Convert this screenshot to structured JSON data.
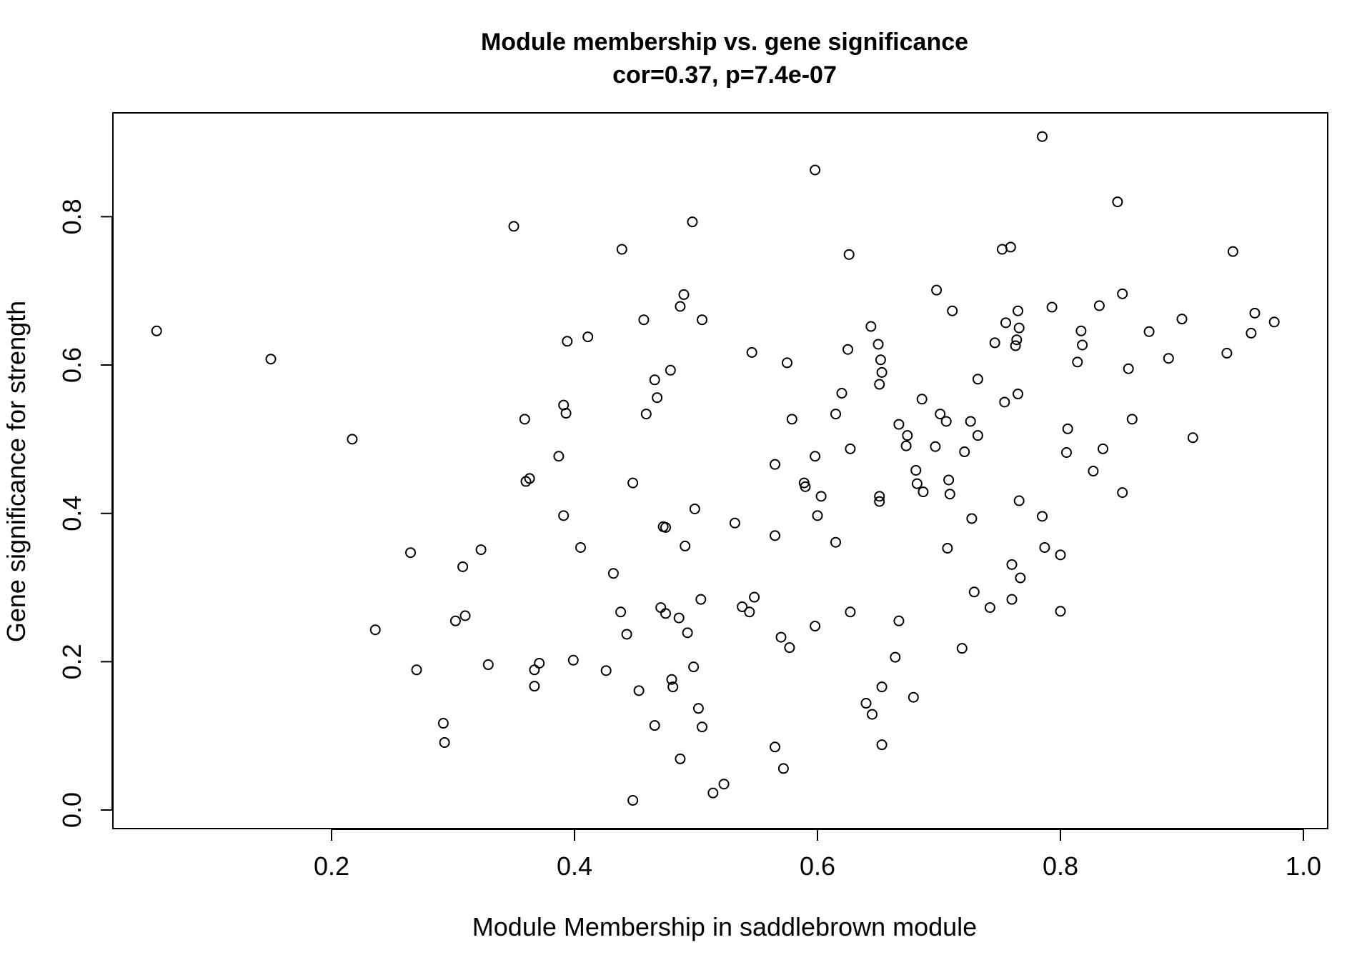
{
  "chart_data": {
    "type": "scatter",
    "title": "Module membership vs. gene significance",
    "subtitle": "cor=0.37, p=7.4e-07",
    "xlabel": "Module Membership in saddlebrown module",
    "ylabel": "Gene significance for strength",
    "xlim": [
      0.02,
      1.02
    ],
    "ylim": [
      -0.025,
      0.94
    ],
    "x_ticks": [
      0.2,
      0.4,
      0.6,
      0.8,
      1.0
    ],
    "x_tick_labels": [
      "0.2",
      "0.4",
      "0.6",
      "0.8",
      "1.0"
    ],
    "y_ticks": [
      0.0,
      0.2,
      0.4,
      0.6,
      0.8
    ],
    "y_tick_labels": [
      "0.0",
      "0.2",
      "0.4",
      "0.6",
      "0.8"
    ],
    "grid": false,
    "marker": "open circle",
    "points": [
      [
        0.056,
        0.646
      ],
      [
        0.15,
        0.608
      ],
      [
        0.217,
        0.5
      ],
      [
        0.236,
        0.243
      ],
      [
        0.265,
        0.347
      ],
      [
        0.27,
        0.189
      ],
      [
        0.292,
        0.117
      ],
      [
        0.293,
        0.091
      ],
      [
        0.302,
        0.255
      ],
      [
        0.308,
        0.328
      ],
      [
        0.31,
        0.262
      ],
      [
        0.323,
        0.351
      ],
      [
        0.329,
        0.196
      ],
      [
        0.35,
        0.787
      ],
      [
        0.359,
        0.527
      ],
      [
        0.36,
        0.443
      ],
      [
        0.363,
        0.447
      ],
      [
        0.367,
        0.189
      ],
      [
        0.367,
        0.167
      ],
      [
        0.371,
        0.198
      ],
      [
        0.387,
        0.477
      ],
      [
        0.391,
        0.546
      ],
      [
        0.391,
        0.397
      ],
      [
        0.393,
        0.535
      ],
      [
        0.394,
        0.632
      ],
      [
        0.399,
        0.202
      ],
      [
        0.405,
        0.354
      ],
      [
        0.411,
        0.638
      ],
      [
        0.426,
        0.188
      ],
      [
        0.432,
        0.319
      ],
      [
        0.438,
        0.267
      ],
      [
        0.439,
        0.756
      ],
      [
        0.443,
        0.237
      ],
      [
        0.448,
        0.441
      ],
      [
        0.448,
        0.013
      ],
      [
        0.453,
        0.161
      ],
      [
        0.457,
        0.661
      ],
      [
        0.459,
        0.534
      ],
      [
        0.466,
        0.58
      ],
      [
        0.466,
        0.114
      ],
      [
        0.468,
        0.556
      ],
      [
        0.471,
        0.273
      ],
      [
        0.473,
        0.382
      ],
      [
        0.475,
        0.381
      ],
      [
        0.475,
        0.265
      ],
      [
        0.479,
        0.593
      ],
      [
        0.48,
        0.176
      ],
      [
        0.481,
        0.166
      ],
      [
        0.486,
        0.259
      ],
      [
        0.487,
        0.679
      ],
      [
        0.487,
        0.069
      ],
      [
        0.49,
        0.695
      ],
      [
        0.491,
        0.356
      ],
      [
        0.493,
        0.239
      ],
      [
        0.497,
        0.793
      ],
      [
        0.498,
        0.193
      ],
      [
        0.499,
        0.406
      ],
      [
        0.502,
        0.137
      ],
      [
        0.504,
        0.284
      ],
      [
        0.505,
        0.661
      ],
      [
        0.505,
        0.112
      ],
      [
        0.514,
        0.023
      ],
      [
        0.523,
        0.035
      ],
      [
        0.532,
        0.387
      ],
      [
        0.538,
        0.274
      ],
      [
        0.544,
        0.267
      ],
      [
        0.546,
        0.617
      ],
      [
        0.548,
        0.287
      ],
      [
        0.565,
        0.466
      ],
      [
        0.565,
        0.37
      ],
      [
        0.565,
        0.085
      ],
      [
        0.57,
        0.233
      ],
      [
        0.572,
        0.056
      ],
      [
        0.575,
        0.603
      ],
      [
        0.577,
        0.219
      ],
      [
        0.579,
        0.527
      ],
      [
        0.589,
        0.441
      ],
      [
        0.59,
        0.436
      ],
      [
        0.598,
        0.863
      ],
      [
        0.598,
        0.477
      ],
      [
        0.598,
        0.248
      ],
      [
        0.6,
        0.397
      ],
      [
        0.603,
        0.423
      ],
      [
        0.615,
        0.534
      ],
      [
        0.615,
        0.361
      ],
      [
        0.62,
        0.562
      ],
      [
        0.625,
        0.621
      ],
      [
        0.626,
        0.749
      ],
      [
        0.627,
        0.487
      ],
      [
        0.627,
        0.267
      ],
      [
        0.64,
        0.144
      ],
      [
        0.644,
        0.652
      ],
      [
        0.645,
        0.129
      ],
      [
        0.65,
        0.628
      ],
      [
        0.651,
        0.574
      ],
      [
        0.651,
        0.423
      ],
      [
        0.651,
        0.416
      ],
      [
        0.652,
        0.607
      ],
      [
        0.653,
        0.59
      ],
      [
        0.653,
        0.166
      ],
      [
        0.653,
        0.088
      ],
      [
        0.664,
        0.206
      ],
      [
        0.667,
        0.52
      ],
      [
        0.667,
        0.255
      ],
      [
        0.673,
        0.491
      ],
      [
        0.674,
        0.505
      ],
      [
        0.679,
        0.152
      ],
      [
        0.681,
        0.458
      ],
      [
        0.682,
        0.44
      ],
      [
        0.686,
        0.554
      ],
      [
        0.687,
        0.429
      ],
      [
        0.697,
        0.49
      ],
      [
        0.698,
        0.701
      ],
      [
        0.701,
        0.534
      ],
      [
        0.706,
        0.524
      ],
      [
        0.707,
        0.353
      ],
      [
        0.708,
        0.445
      ],
      [
        0.709,
        0.426
      ],
      [
        0.711,
        0.673
      ],
      [
        0.719,
        0.218
      ],
      [
        0.721,
        0.483
      ],
      [
        0.726,
        0.524
      ],
      [
        0.727,
        0.393
      ],
      [
        0.729,
        0.294
      ],
      [
        0.732,
        0.581
      ],
      [
        0.732,
        0.505
      ],
      [
        0.742,
        0.273
      ],
      [
        0.746,
        0.63
      ],
      [
        0.752,
        0.756
      ],
      [
        0.754,
        0.55
      ],
      [
        0.755,
        0.657
      ],
      [
        0.759,
        0.759
      ],
      [
        0.76,
        0.331
      ],
      [
        0.76,
        0.284
      ],
      [
        0.763,
        0.626
      ],
      [
        0.764,
        0.634
      ],
      [
        0.765,
        0.673
      ],
      [
        0.765,
        0.561
      ],
      [
        0.766,
        0.65
      ],
      [
        0.766,
        0.417
      ],
      [
        0.767,
        0.313
      ],
      [
        0.785,
        0.908
      ],
      [
        0.785,
        0.396
      ],
      [
        0.787,
        0.354
      ],
      [
        0.793,
        0.678
      ],
      [
        0.8,
        0.344
      ],
      [
        0.8,
        0.268
      ],
      [
        0.805,
        0.482
      ],
      [
        0.806,
        0.514
      ],
      [
        0.814,
        0.604
      ],
      [
        0.817,
        0.646
      ],
      [
        0.818,
        0.627
      ],
      [
        0.827,
        0.457
      ],
      [
        0.832,
        0.68
      ],
      [
        0.835,
        0.487
      ],
      [
        0.847,
        0.82
      ],
      [
        0.851,
        0.696
      ],
      [
        0.851,
        0.428
      ],
      [
        0.856,
        0.595
      ],
      [
        0.859,
        0.527
      ],
      [
        0.873,
        0.645
      ],
      [
        0.889,
        0.609
      ],
      [
        0.9,
        0.662
      ],
      [
        0.909,
        0.502
      ],
      [
        0.937,
        0.616
      ],
      [
        0.942,
        0.753
      ],
      [
        0.957,
        0.643
      ],
      [
        0.96,
        0.67
      ],
      [
        0.976,
        0.658
      ]
    ]
  }
}
